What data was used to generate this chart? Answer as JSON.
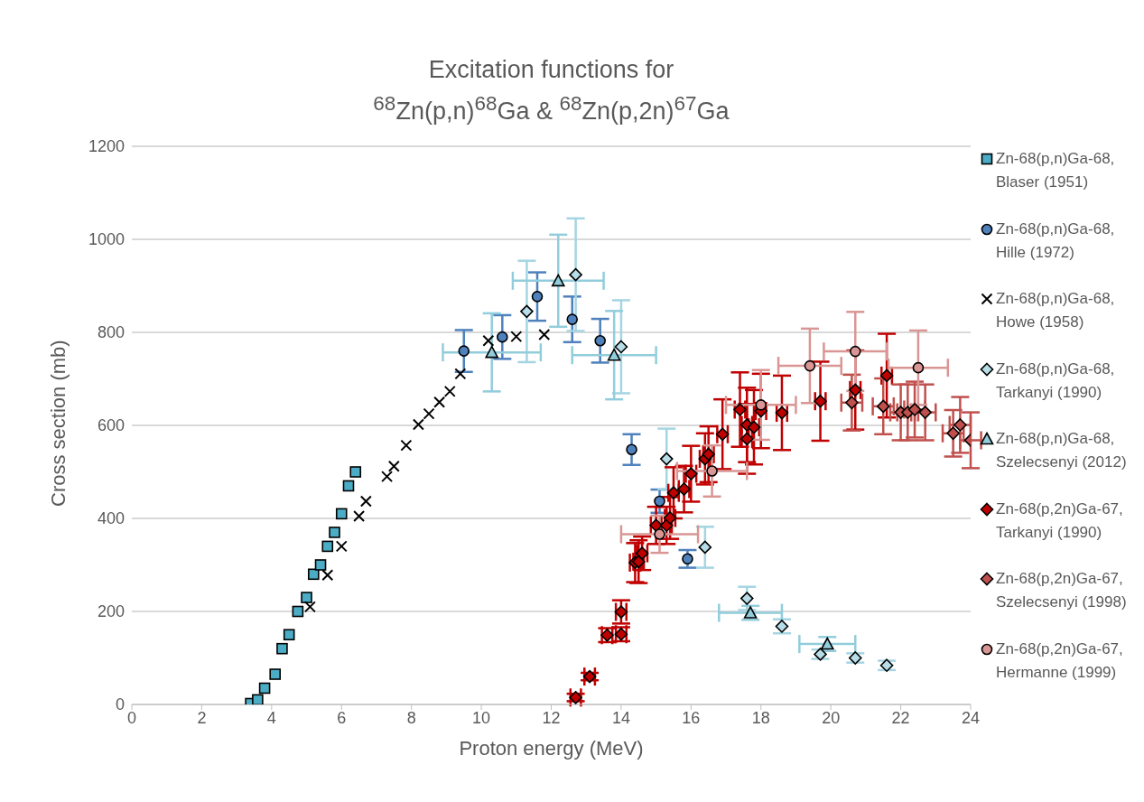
{
  "chart_data": {
    "type": "scatter",
    "title": "Excitation functions for\n$^{68}$Zn(p,n)$^{68}$Ga & $^{68}$Zn(p,2n)$^{67}$Ga",
    "xlabel": "Proton energy (MeV)",
    "ylabel": "Cross section (mb)",
    "xlim": [
      0,
      24
    ],
    "xticks": [
      0,
      2,
      4,
      6,
      8,
      10,
      12,
      14,
      16,
      18,
      20,
      22,
      24
    ],
    "ylim": [
      0,
      1200
    ],
    "yticks": [
      0,
      200,
      400,
      600,
      800,
      1000,
      1200
    ],
    "grid": "y",
    "legend": "right",
    "series": [
      {
        "name": "Zn-68(p,n)Ga-68, Blaser (1951)",
        "color": "#4bacc6",
        "marker": "square",
        "x": [
          3.4,
          3.6,
          3.8,
          4.1,
          4.3,
          4.5,
          4.75,
          5,
          5.2,
          5.4,
          5.6,
          5.8,
          6,
          6.2,
          6.4
        ],
        "values": [
          2,
          10,
          35,
          65,
          120,
          150,
          200,
          230,
          280,
          300,
          340,
          370,
          410,
          470,
          500
        ]
      },
      {
        "name": "Zn-68(p,n)Ga-68, Hille (1972)",
        "color": "#4f81bd",
        "marker": "circle",
        "x": [
          9.5,
          10.6,
          11.6,
          12.6,
          13.4,
          14.3,
          15.1,
          15.9
        ],
        "values": [
          760,
          790,
          877,
          828,
          782,
          548,
          437,
          313
        ],
        "errors": [
          45,
          47,
          52,
          49,
          47,
          33,
          25,
          19
        ]
      },
      {
        "name": "Zn-68(p,n)Ga-68, Howe (1958)",
        "color": "#000000",
        "marker": "cross",
        "x": [
          5.1,
          5.6,
          6,
          6.5,
          6.7,
          7.3,
          7.5,
          7.85,
          8.2,
          8.5,
          8.8,
          9.1,
          9.4,
          10.2,
          11,
          11.8
        ],
        "values": [
          210,
          278,
          340,
          405,
          437,
          490,
          512,
          557,
          602,
          625,
          650,
          673,
          711,
          782,
          791,
          795
        ]
      },
      {
        "name": "Zn-68(p,n)Ga-68, Tarkanyi (1990)",
        "color": "#b7dee8",
        "marker": "diamond",
        "x": [
          11.3,
          12.7,
          14,
          15.3,
          16.4,
          17.6,
          18.6,
          19.7,
          20.7,
          21.6
        ],
        "values": [
          845,
          924,
          769,
          528,
          338,
          228,
          168,
          108,
          100,
          84
        ],
        "errors": [
          109,
          121,
          100,
          65,
          44,
          25,
          15,
          10,
          10,
          10
        ]
      },
      {
        "name": "Zn-68(p,n)Ga-68, Szelecsenyi (2012)",
        "color": "#92cddc",
        "marker": "triangle",
        "x": [
          10.3,
          12.2,
          13.8,
          17.7,
          19.9
        ],
        "values": [
          757,
          911,
          751,
          197,
          130
        ],
        "errors": [
          84,
          99,
          95,
          15,
          15
        ],
        "xerrors": [
          1.4,
          1.3,
          1.2,
          0.9,
          0.8
        ]
      },
      {
        "name": "Zn-68(p,2n)Ga-67, Tarkanyi (1990)",
        "color": "#c00000",
        "marker": "diamond",
        "x": [
          12.7,
          13.1,
          13.6,
          14,
          14,
          14.4,
          14.5,
          14.6,
          15,
          15.3,
          15.4,
          15.5,
          15.8,
          16,
          16.4,
          16.5,
          16.9,
          17.4,
          17.6,
          17.6,
          17.8,
          18,
          18.6,
          19.7,
          20.7,
          21.6
        ],
        "values": [
          15,
          60,
          149,
          151,
          199,
          305,
          307,
          325,
          385,
          385,
          401,
          455,
          463,
          496,
          528,
          538,
          581,
          634,
          601,
          571,
          596,
          631,
          627,
          652,
          676,
          707
        ],
        "errors": [
          8,
          8,
          15,
          15,
          25,
          42,
          46,
          36,
          40,
          40,
          45,
          55,
          50,
          60,
          55,
          60,
          75,
          80,
          80,
          75,
          80,
          80,
          80,
          85,
          85,
          90
        ],
        "xerrors": [
          0.15,
          0.15,
          0.15,
          0.15,
          0.15,
          0.15,
          0.15,
          0.15,
          0.15,
          0.15,
          0.15,
          0.15,
          0.15,
          0.15,
          0.15,
          0.15,
          0.15,
          0.15,
          0.15,
          0.15,
          0.15,
          0.15,
          0.15,
          0.15,
          0.15,
          0.15
        ]
      },
      {
        "name": "Zn-68(p,2n)Ga-67, Szelecsenyi (1998)",
        "color": "#c0504d",
        "marker": "diamond",
        "x": [
          20.6,
          21.5,
          22,
          22.2,
          22.4,
          22.7,
          23.5,
          23.7,
          24
        ],
        "values": [
          649,
          641,
          628,
          628,
          634,
          628,
          583,
          601,
          568
        ],
        "errors": [
          60,
          60,
          60,
          60,
          60,
          60,
          50,
          60,
          60
        ],
        "xerrors": [
          0.3,
          0.3,
          0.3,
          0.3,
          0.3,
          0.3,
          0.3,
          0.3,
          0.3
        ]
      },
      {
        "name": "Zn-68(p,2n)Ga-67, Hermanne (1999)",
        "color": "#d99694",
        "marker": "circle",
        "x": [
          15.1,
          16.6,
          18,
          19.4,
          20.7,
          22.5
        ],
        "values": [
          366,
          502,
          644,
          728,
          759,
          724
        ],
        "errors": [
          40,
          55,
          75,
          80,
          85,
          80
        ],
        "xerrors": [
          1.1,
          1,
          1,
          0.9,
          0.9,
          0.85
        ]
      }
    ]
  }
}
